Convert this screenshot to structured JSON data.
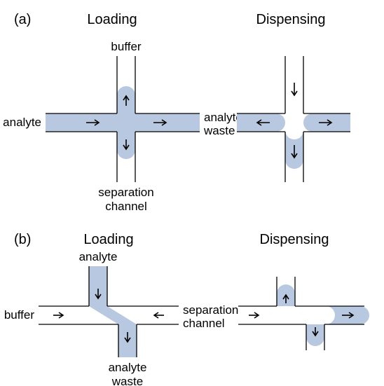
{
  "panel_a": {
    "label": "(a)",
    "loading_title": "Loading",
    "dispensing_title": "Dispensing",
    "buffer_label": "buffer",
    "analyte_label": "analyte",
    "analyte_waste_label1": "analyte",
    "analyte_waste_label2": "waste",
    "separation_label1": "separation",
    "separation_label2": "channel"
  },
  "panel_b": {
    "label": "(b)",
    "loading_title": "Loading",
    "dispensing_title": "Dispensing",
    "analyte_label": "analyte",
    "buffer_label": "buffer",
    "separation_label1": "separation",
    "separation_label2": "channel",
    "analyte_waste_label1": "analyte",
    "analyte_waste_label2": "waste"
  },
  "style": {
    "fill_color": "#b8c8e0",
    "stroke_color": "#000000",
    "background": "#ffffff",
    "title_fontsize": 20,
    "label_fontsize": 17,
    "panel_label_fontsize": 20,
    "channel_half_width": 13,
    "stroke_width": 1.3,
    "arrow_stroke_width": 1.6,
    "tongue_length": 26
  }
}
